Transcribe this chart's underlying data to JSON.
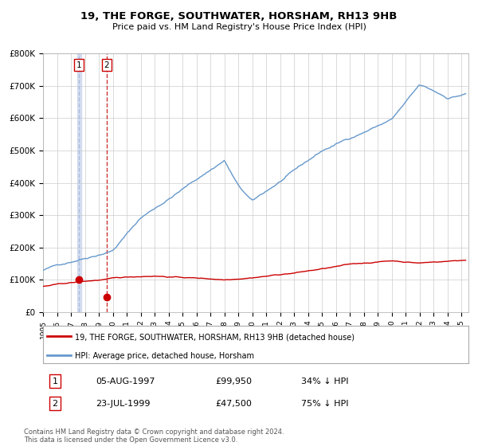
{
  "title": "19, THE FORGE, SOUTHWATER, HORSHAM, RH13 9HB",
  "subtitle": "Price paid vs. HM Land Registry's House Price Index (HPI)",
  "legend_line1": "19, THE FORGE, SOUTHWATER, HORSHAM, RH13 9HB (detached house)",
  "legend_line2": "HPI: Average price, detached house, Horsham",
  "transaction1_date": "05-AUG-1997",
  "transaction1_price": "£99,950",
  "transaction1_hpi": "34% ↓ HPI",
  "transaction1_year": 1997.59,
  "transaction1_value": 99950,
  "transaction2_date": "23-JUL-1999",
  "transaction2_price": "£47,500",
  "transaction2_hpi": "75% ↓ HPI",
  "transaction2_year": 1999.55,
  "transaction2_value": 47500,
  "hpi_color": "#6699cc",
  "property_color": "#cc0000",
  "vline1_color": "#aabbdd",
  "vline2_color": "#cc3333",
  "marker_color": "#cc0000",
  "background_color": "#ffffff",
  "grid_color": "#cccccc",
  "ylim_min": 0,
  "ylim_max": 800000,
  "xlim_min": 1995.0,
  "xlim_max": 2025.5,
  "footer": "Contains HM Land Registry data © Crown copyright and database right 2024.\nThis data is licensed under the Open Government Licence v3.0."
}
